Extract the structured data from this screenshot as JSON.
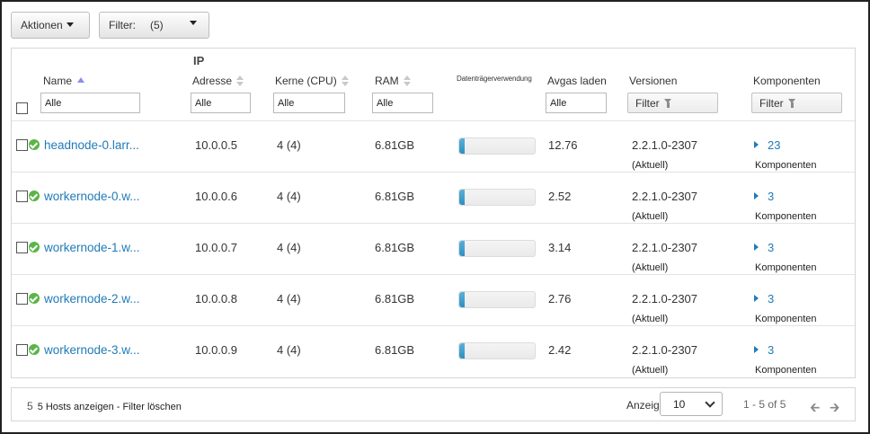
{
  "toolbar": {
    "actions_label": "Aktionen",
    "filter_label": "Filter:",
    "filter_count": "(5)"
  },
  "columns": {
    "name": {
      "label": "Name",
      "filter": "Alle"
    },
    "ip": {
      "label_top": "IP",
      "label": "Adresse",
      "filter": "Alle"
    },
    "cores": {
      "label": "Kerne (CPU)",
      "filter": "Alle"
    },
    "ram": {
      "label": "RAM",
      "filter": "Alle"
    },
    "disk": {
      "label": "Datenträgerverwendung"
    },
    "load": {
      "label": "Avgas laden",
      "filter": "Alle"
    },
    "versions": {
      "label": "Versionen",
      "filter_button": "Filter"
    },
    "components": {
      "label": "Komponenten",
      "filter_button": "Filter"
    }
  },
  "rows": [
    {
      "name": "headnode-0.larr...",
      "ip": "10.0.0.5",
      "cores": "4 (4)",
      "ram": "6.81GB",
      "disk_usage": 0.07,
      "load": "12.76",
      "version": "2.2.1.0-2307",
      "version_status": "(Aktuell)",
      "component_count": "23",
      "component_label": "Komponenten"
    },
    {
      "name": "workernode-0.w...",
      "ip": "10.0.0.6",
      "cores": "4 (4)",
      "ram": "6.81GB",
      "disk_usage": 0.07,
      "load": "2.52",
      "version": "2.2.1.0-2307",
      "version_status": "(Aktuell)",
      "component_count": "3",
      "component_label": "Komponenten"
    },
    {
      "name": "workernode-1.w...",
      "ip": "10.0.0.7",
      "cores": "4 (4)",
      "ram": "6.81GB",
      "disk_usage": 0.07,
      "load": "3.14",
      "version": "2.2.1.0-2307",
      "version_status": "(Aktuell)",
      "component_count": "3",
      "component_label": "Komponenten"
    },
    {
      "name": "workernode-2.w...",
      "ip": "10.0.0.8",
      "cores": "4 (4)",
      "ram": "6.81GB",
      "disk_usage": 0.07,
      "load": "2.76",
      "version": "2.2.1.0-2307",
      "version_status": "(Aktuell)",
      "component_count": "3",
      "component_label": "Komponenten"
    },
    {
      "name": "workernode-3.w...",
      "ip": "10.0.0.9",
      "cores": "4 (4)",
      "ram": "6.81GB",
      "disk_usage": 0.07,
      "load": "2.42",
      "version": "2.2.1.0-2307",
      "version_status": "(Aktuell)",
      "component_count": "3",
      "component_label": "Komponenten"
    }
  ],
  "footer": {
    "count": "5",
    "summary": "5 Hosts anzeigen - Filter löschen",
    "per_page_label": "Anzeigen:",
    "per_page_value": "10",
    "range": "1 - 5 of 5",
    "prev_icon": "arrow-left-icon",
    "next_icon": "arrow-right-icon"
  },
  "colors": {
    "link": "#1f7bb8",
    "status_ok": "#5bb548",
    "bar_fill": "#2f8fc0"
  }
}
